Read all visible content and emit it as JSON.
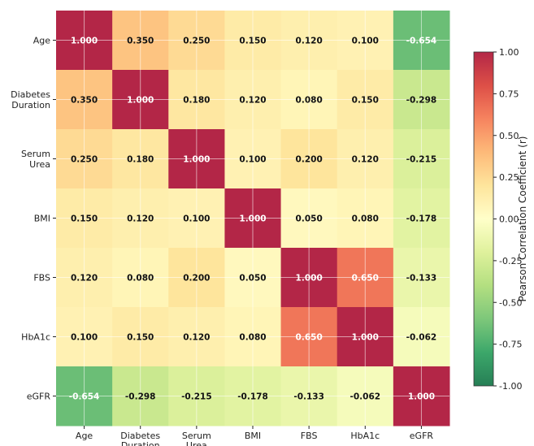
{
  "chart_data": {
    "type": "heatmap",
    "title": "",
    "xlabel": "",
    "ylabel": "",
    "x_tick_labels": [
      "Age",
      "Diabetes Duration",
      "Serum Urea",
      "BMI",
      "FBS",
      "HbA1c",
      "eGFR"
    ],
    "y_tick_labels": [
      "Age",
      "Diabetes Duration",
      "Serum Urea",
      "BMI",
      "FBS",
      "HbA1c",
      "eGFR"
    ],
    "values": [
      [
        1.0,
        0.35,
        0.25,
        0.15,
        0.12,
        0.1,
        -0.654
      ],
      [
        0.35,
        1.0,
        0.18,
        0.12,
        0.08,
        0.15,
        -0.298
      ],
      [
        0.25,
        0.18,
        1.0,
        0.1,
        0.2,
        0.12,
        -0.215
      ],
      [
        0.15,
        0.12,
        0.1,
        1.0,
        0.05,
        0.08,
        -0.178
      ],
      [
        0.12,
        0.08,
        0.2,
        0.05,
        1.0,
        0.65,
        -0.133
      ],
      [
        0.1,
        0.15,
        0.12,
        0.08,
        0.65,
        1.0,
        -0.062
      ],
      [
        -0.654,
        -0.298,
        -0.215,
        -0.178,
        -0.133,
        -0.062,
        1.0
      ]
    ],
    "value_format": "0.000",
    "colormap": "RdYlGn_r",
    "vmin": -1.0,
    "vmax": 1.0,
    "grid": true,
    "colorbar": {
      "label": "Pearson Correlation Coefficient (r)",
      "ticks": [
        1.0,
        0.75,
        0.5,
        0.25,
        0.0,
        -0.25,
        -0.5,
        -0.75,
        -1.0
      ],
      "tick_labels": [
        "1.00",
        "0.75",
        "0.50",
        "0.25",
        "0.00",
        "-0.25",
        "-0.50",
        "-0.75",
        "-1.00"
      ],
      "placement": "right"
    }
  }
}
